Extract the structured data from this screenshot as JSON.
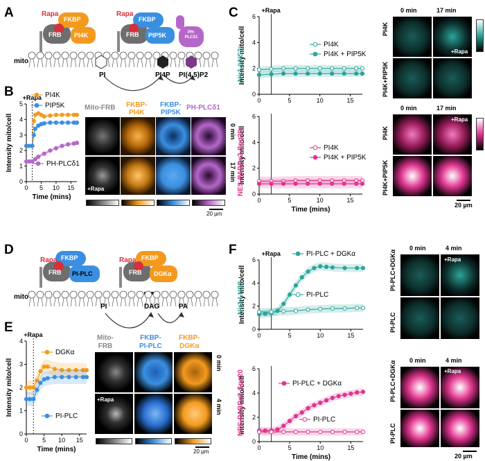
{
  "panels": {
    "A": "A",
    "B": "B",
    "C": "C",
    "D": "D",
    "E": "E",
    "F": "F"
  },
  "panelA": {
    "rapa": "Rapa",
    "fkbp": "FKBP",
    "frb": "FRB",
    "pi4k": "PI4K",
    "pip5k": "PIP5K",
    "ph": "PH-\nPLCδ1",
    "mito": "mito",
    "pi": "PI",
    "pi4p": "PI4P",
    "pi45p2": "PI(4,5)P2"
  },
  "panelD": {
    "rapa": "Rapa",
    "fkbp": "FKBP",
    "frb": "FRB",
    "piplc": "PI-PLC",
    "dgk": "DGKα",
    "mito": "mito",
    "pi": "PI",
    "dag": "DAG",
    "pa": "PA"
  },
  "panelB": {
    "rapa": "+Rapa",
    "ylabel": "Intensity mito/cell",
    "xlabel": "Time (mins)",
    "legend": [
      "PI4K",
      "PIP5K",
      "PH-PLCδ1"
    ],
    "img_cols": [
      "Mito-FRB",
      "FKBP-\nPI4K",
      "FKBP-\nPIP5K",
      "PH-PLCδ1"
    ],
    "t0": "0 min",
    "t1": "17 min",
    "rapa_img": "+Rapa",
    "scale": "20 µm"
  },
  "panelC": {
    "rapa": "+Rapa",
    "xlabel": "Time (mins)",
    "top_ylabel": "Intensity mito/cell",
    "top_sensor": "Nir1-LNS2",
    "bot_ylabel": "Intensity mito/cell",
    "bot_sensor": "NES-PABDx2-Spo20",
    "top_legend": [
      "PI4K",
      "PI4K + PIP5K"
    ],
    "bot_legend": [
      "PI4K",
      "PI4K + PIP5K"
    ],
    "img_t0": "0 min",
    "img_t1": "17 min",
    "rapa_img": "+Rapa",
    "row_labels": [
      "PI4K",
      "PI4K+PIP5K"
    ],
    "scale": "20 µm"
  },
  "panelE": {
    "rapa": "+Rapa",
    "ylabel": "Intensity mito/cell",
    "xlabel": "Time (mins)",
    "legend": [
      "DGKα",
      "PI-PLC"
    ],
    "img_cols": [
      "Mito-\nFRB",
      "FKBP-\nPI-PLC",
      "FKBP-\nDGKα"
    ],
    "t0": "0 min",
    "t1": "4 min",
    "rapa_img": "+Rapa",
    "scale": "20 µm"
  },
  "panelF": {
    "rapa": "+Rapa",
    "xlabel": "Time (mins)",
    "top_ylabel": "Intensity mito/cell",
    "top_sensor": "Nir1-LNS2",
    "bot_ylabel": "Intensity mito/cell",
    "bot_sensor": "NES-PABDx2-Spo20",
    "top_legend": [
      "PI-PLC + DGKα",
      "PI-PLC"
    ],
    "bot_legend": [
      "PI-PLC + DGKα",
      "PI-PLC"
    ],
    "img_t0": "0 min",
    "img_t1": "4 min",
    "rapa_img": "+Rapa",
    "row_labels": [
      "PI-PLC+DGKα",
      "PI-PLC"
    ],
    "scale": "20 µm"
  },
  "colors": {
    "orange": "#f39a1e",
    "blue": "#3b8fe0",
    "purple": "#b567c9",
    "teal": "#2aa59a",
    "pink": "#e0358f",
    "gray": "#7a7a7a",
    "rapa": "#d6303a"
  },
  "chart_data": [
    {
      "id": "B",
      "type": "line",
      "title": "",
      "xlabel": "Time (mins)",
      "ylabel": "Intensity mito/cell",
      "xlim": [
        0,
        17
      ],
      "xticks": [
        0,
        5,
        10,
        15
      ],
      "ylim": [
        0,
        5
      ],
      "yticks": [
        0,
        1,
        2,
        3,
        4,
        5
      ],
      "rapa_time": 2,
      "series": [
        {
          "name": "PI4K",
          "color": "#f39a1e",
          "x": [
            0,
            1,
            2,
            2.5,
            3,
            4,
            5,
            6,
            8,
            10,
            12,
            14,
            16,
            17
          ],
          "y": [
            2.3,
            2.3,
            2.3,
            3.9,
            4.3,
            4.4,
            4.3,
            4.2,
            4.25,
            4.3,
            4.3,
            4.3,
            4.3,
            4.3
          ]
        },
        {
          "name": "PIP5K",
          "color": "#3b8fe0",
          "x": [
            0,
            1,
            2,
            2.5,
            3,
            4,
            5,
            6,
            8,
            10,
            12,
            14,
            16,
            17
          ],
          "y": [
            2.3,
            2.3,
            2.3,
            3.0,
            3.4,
            3.6,
            3.7,
            3.75,
            3.8,
            3.8,
            3.8,
            3.8,
            3.8,
            3.8
          ]
        },
        {
          "name": "PH-PLCδ1",
          "color": "#b567c9",
          "x": [
            0,
            1,
            2,
            3,
            4,
            6,
            8,
            10,
            12,
            14,
            16,
            17
          ],
          "y": [
            1.3,
            1.3,
            1.3,
            1.45,
            1.6,
            1.8,
            2.0,
            2.15,
            2.3,
            2.4,
            2.45,
            2.5
          ]
        }
      ]
    },
    {
      "id": "C-top",
      "type": "line",
      "xlabel": "",
      "ylabel": "Intensity mito/cell",
      "xlim": [
        0,
        17
      ],
      "xticks": [
        0,
        5,
        10,
        15
      ],
      "ylim": [
        0,
        6
      ],
      "yticks": [
        0,
        2,
        4,
        6
      ],
      "rapa_time": 2,
      "series": [
        {
          "name": "PI4K",
          "color": "#2aa59a",
          "open": true,
          "x": [
            0,
            2,
            4,
            6,
            8,
            10,
            12,
            14,
            16,
            17
          ],
          "y": [
            1.9,
            1.95,
            2.0,
            2.0,
            2.0,
            2.0,
            2.0,
            2.0,
            2.0,
            2.0
          ]
        },
        {
          "name": "PI4K + PIP5K",
          "color": "#2aa59a",
          "open": false,
          "x": [
            0,
            2,
            4,
            6,
            8,
            10,
            12,
            14,
            16,
            17
          ],
          "y": [
            1.5,
            1.55,
            1.6,
            1.6,
            1.6,
            1.6,
            1.6,
            1.6,
            1.6,
            1.6
          ]
        }
      ]
    },
    {
      "id": "C-bottom",
      "type": "line",
      "xlabel": "Time (mins)",
      "ylabel": "Intensity mito/cell",
      "xlim": [
        0,
        17
      ],
      "xticks": [
        0,
        5,
        10,
        15
      ],
      "ylim": [
        0,
        6
      ],
      "yticks": [
        0,
        2,
        4,
        6
      ],
      "rapa_time": 2,
      "series": [
        {
          "name": "PI4K",
          "color": "#e0358f",
          "open": true,
          "x": [
            0,
            2,
            4,
            6,
            8,
            10,
            12,
            14,
            16,
            17
          ],
          "y": [
            1.0,
            1.0,
            1.0,
            1.05,
            1.05,
            1.05,
            1.05,
            1.05,
            1.05,
            1.05
          ]
        },
        {
          "name": "PI4K + PIP5K",
          "color": "#e0358f",
          "open": false,
          "x": [
            0,
            2,
            4,
            6,
            8,
            10,
            12,
            14,
            16,
            17
          ],
          "y": [
            0.8,
            0.8,
            0.8,
            0.8,
            0.8,
            0.8,
            0.8,
            0.8,
            0.8,
            0.8
          ]
        }
      ]
    },
    {
      "id": "E",
      "type": "line",
      "xlabel": "Time (mins)",
      "ylabel": "Intensity mito/cell",
      "xlim": [
        0,
        17
      ],
      "xticks": [
        0,
        5,
        10,
        15
      ],
      "ylim": [
        0,
        4
      ],
      "yticks": [
        0,
        1,
        2,
        3,
        4
      ],
      "rapa_time": 2,
      "series": [
        {
          "name": "DGKα",
          "color": "#f39a1e",
          "x": [
            0,
            1,
            2,
            3,
            4,
            5,
            6,
            8,
            10,
            12,
            14,
            16,
            17
          ],
          "y": [
            2.0,
            2.0,
            2.0,
            2.3,
            2.7,
            2.9,
            2.9,
            2.8,
            2.75,
            2.75,
            2.75,
            2.75,
            2.75
          ]
        },
        {
          "name": "PI-PLC",
          "color": "#3b8fe0",
          "x": [
            0,
            1,
            2,
            3,
            4,
            5,
            6,
            8,
            10,
            12,
            14,
            16,
            17
          ],
          "y": [
            1.5,
            1.5,
            1.5,
            1.9,
            2.2,
            2.35,
            2.4,
            2.45,
            2.45,
            2.45,
            2.45,
            2.45,
            2.45
          ]
        }
      ]
    },
    {
      "id": "F-top",
      "type": "line",
      "xlabel": "",
      "ylabel": "Intensity mito/cell",
      "xlim": [
        0,
        17
      ],
      "xticks": [
        0,
        5,
        10,
        15
      ],
      "ylim": [
        0,
        6
      ],
      "yticks": [
        0,
        2,
        4,
        6
      ],
      "rapa_time": 2,
      "series": [
        {
          "name": "PI-PLC + DGKα",
          "color": "#2aa59a",
          "open": false,
          "x": [
            0,
            1,
            2,
            3,
            4,
            5,
            6,
            7,
            8,
            9,
            10,
            11,
            12,
            14,
            16,
            17
          ],
          "y": [
            1.3,
            1.35,
            1.4,
            1.6,
            2.2,
            3.0,
            3.8,
            4.5,
            5.0,
            5.3,
            5.45,
            5.4,
            5.35,
            5.3,
            5.3,
            5.3
          ]
        },
        {
          "name": "PI-PLC",
          "color": "#2aa59a",
          "open": true,
          "x": [
            0,
            2,
            4,
            6,
            8,
            10,
            12,
            14,
            16,
            17
          ],
          "y": [
            1.5,
            1.5,
            1.55,
            1.6,
            1.7,
            1.75,
            1.8,
            1.8,
            1.85,
            1.85
          ]
        }
      ]
    },
    {
      "id": "F-bottom",
      "type": "line",
      "xlabel": "Time (mins)",
      "ylabel": "Intensity mito/cell",
      "xlim": [
        0,
        17
      ],
      "xticks": [
        0,
        5,
        10,
        15
      ],
      "ylim": [
        0,
        6
      ],
      "yticks": [
        0,
        2,
        4,
        6
      ],
      "rapa_time": 2,
      "series": [
        {
          "name": "PI-PLC + DGKα",
          "color": "#e0358f",
          "open": false,
          "x": [
            0,
            1,
            2,
            3,
            4,
            5,
            6,
            7,
            8,
            9,
            10,
            11,
            12,
            13,
            14,
            15,
            16,
            17
          ],
          "y": [
            0.9,
            0.9,
            0.9,
            1.0,
            1.3,
            1.7,
            2.1,
            2.4,
            2.75,
            3.0,
            3.2,
            3.4,
            3.6,
            3.75,
            3.85,
            3.95,
            4.05,
            4.1
          ]
        },
        {
          "name": "PI-PLC",
          "color": "#e0358f",
          "open": true,
          "x": [
            0,
            2,
            4,
            6,
            8,
            10,
            12,
            14,
            16,
            17
          ],
          "y": [
            0.8,
            0.8,
            0.8,
            0.8,
            0.8,
            0.8,
            0.8,
            0.8,
            0.8,
            0.8
          ]
        }
      ]
    }
  ]
}
